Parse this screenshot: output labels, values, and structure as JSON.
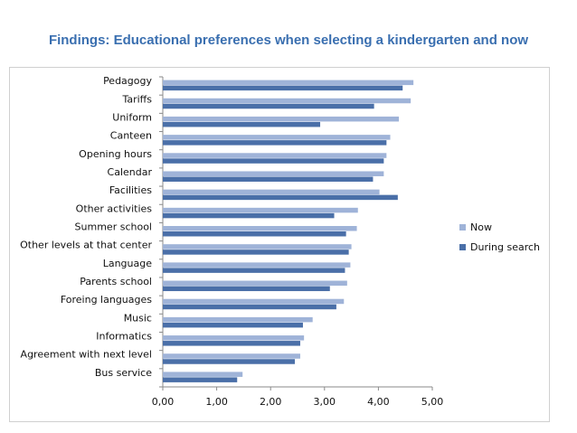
{
  "title": "Findings: Educational preferences when selecting a kindergarten and now",
  "chart_data": {
    "type": "bar",
    "orientation": "horizontal",
    "categories": [
      "Pedagogy",
      "Tariffs",
      "Uniform",
      "Canteen",
      "Opening hours",
      "Calendar",
      "Facilities",
      "Other activities",
      "Summer school",
      "Other levels at that center",
      "Language",
      "Parents school",
      "Foreing languages",
      "Music",
      "Informatics",
      "Agreement with next level",
      "Bus service"
    ],
    "series": [
      {
        "name": "Now",
        "color": "#9fb3d8",
        "values": [
          4.65,
          4.6,
          4.38,
          4.22,
          4.15,
          4.1,
          4.02,
          3.62,
          3.6,
          3.5,
          3.48,
          3.42,
          3.36,
          2.78,
          2.62,
          2.55,
          1.48
        ]
      },
      {
        "name": "During search",
        "color": "#4a6fa8",
        "values": [
          4.45,
          3.92,
          2.92,
          4.15,
          4.1,
          3.9,
          4.36,
          3.18,
          3.4,
          3.45,
          3.38,
          3.1,
          3.22,
          2.6,
          2.55,
          2.45,
          1.38
        ]
      }
    ],
    "xlim": [
      0,
      5
    ],
    "xticks": [
      "0,00",
      "1,00",
      "2,00",
      "3,00",
      "4,00",
      "5,00"
    ],
    "grid": false,
    "legend": "right"
  }
}
